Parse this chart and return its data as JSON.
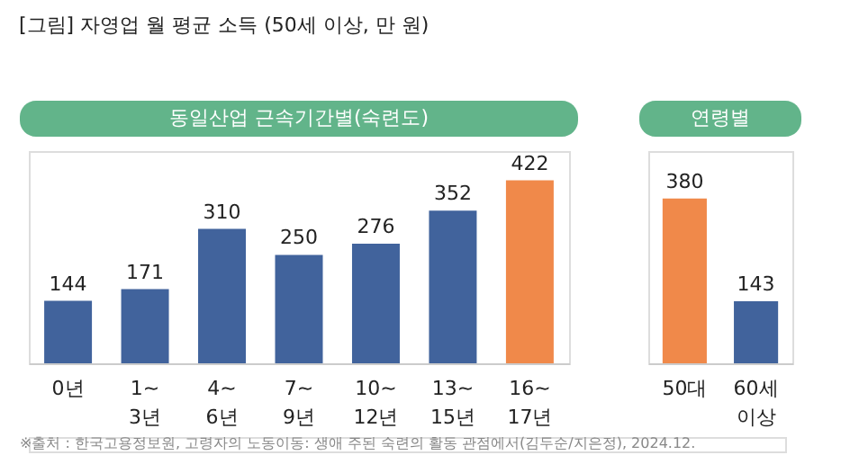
{
  "chart_data": [
    {
      "type": "bar",
      "title": "동일산업 근속기간별(숙련도)",
      "annotations": [
        "[그림] 자영업 월 평균 소득 (50세 이상, 만 원)",
        "※출처 : 한국고용정보원, 고령자의 노동이동: 생애 주된 숙련의 활동 관점에서(김두순/지은정), 2024.12."
      ],
      "categories": [
        "0년",
        "1~3년",
        "4~6년",
        "7~9년",
        "10~12년",
        "13~15년",
        "16~17년"
      ],
      "values": [
        144,
        171,
        310,
        250,
        276,
        352,
        422
      ],
      "colors": [
        "#41639c",
        "#41639c",
        "#41639c",
        "#41639c",
        "#41639c",
        "#41639c",
        "#f0894a"
      ],
      "data_labels": true
    },
    {
      "type": "bar",
      "title": "연령별",
      "categories": [
        "50대",
        "60세 이상"
      ],
      "values": [
        380,
        143
      ],
      "colors": [
        "#f0894a",
        "#41639c"
      ],
      "data_labels": true
    }
  ]
}
